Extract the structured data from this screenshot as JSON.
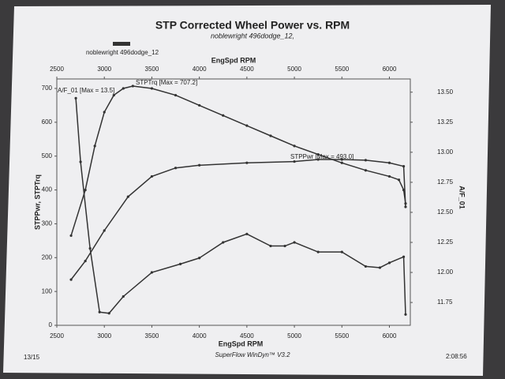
{
  "chart_data": {
    "type": "line",
    "title": "STP Corrected Wheel Power vs. RPM",
    "subtitle": "noblewright 496dodge_12,",
    "legend_label": "noblewright 496dodge_12",
    "x_label": "EngSpd  RPM",
    "y_label": "STPPwr, STPTrq",
    "y2_label": "A/F_01",
    "footer": "SuperFlow WinDyn™ V3.2",
    "date": "13/15",
    "time": "2:08:56",
    "annotations": [
      "A/F_01 [Max = 13.5]",
      "STPTrq [Max = 707.2]",
      "STPPwr [Max = 493.0]"
    ],
    "xlim": [
      2500,
      6220
    ],
    "xticks": [
      2500,
      3000,
      3500,
      4000,
      4500,
      5000,
      5500,
      6000
    ],
    "ylim": [
      0,
      728
    ],
    "yticks": [
      0,
      100,
      200,
      300,
      400,
      500,
      600,
      700
    ],
    "y2lim": [
      11.56,
      13.61
    ],
    "y2ticks": [
      11.75,
      {
        "value": 12,
        "label": "12.00"
      },
      12.25,
      {
        "value": 12.5,
        "label": "12.50"
      },
      12.75,
      {
        "value": 13,
        "label": "13.00"
      },
      13.25,
      {
        "value": 13.5,
        "label": "13.50"
      }
    ],
    "series": [
      {
        "name": "STPTrq",
        "color": "#333333",
        "x": [
          2650,
          2800,
          2900,
          3000,
          3100,
          3200,
          3300,
          3500,
          3750,
          4000,
          4250,
          4500,
          4750,
          5000,
          5250,
          5500,
          5750,
          6000,
          6100,
          6150,
          6170
        ],
        "values": [
          265,
          400,
          530,
          630,
          680,
          700,
          707,
          700,
          680,
          650,
          620,
          590,
          560,
          530,
          505,
          480,
          458,
          440,
          430,
          400,
          360
        ]
      },
      {
        "name": "STPPwr",
        "color": "#333333",
        "x": [
          2650,
          2800,
          3000,
          3250,
          3500,
          3750,
          4000,
          4500,
          5000,
          5250,
          5500,
          5750,
          6000,
          6150,
          6170
        ],
        "values": [
          135,
          190,
          280,
          380,
          440,
          465,
          473,
          480,
          484,
          490,
          490,
          488,
          480,
          470,
          350
        ]
      },
      {
        "name": "A/F_01",
        "color": "#333333",
        "axis": "y2",
        "x": [
          2700,
          2750,
          2850,
          2950,
          3050,
          3200,
          3500,
          3800,
          4000,
          4250,
          4500,
          4750,
          4900,
          5000,
          5250,
          5500,
          5750,
          5900,
          6000,
          6150,
          6170
        ],
        "values": [
          13.45,
          12.92,
          12.2,
          11.67,
          11.66,
          11.8,
          12.0,
          12.07,
          12.12,
          12.25,
          12.32,
          12.22,
          12.22,
          12.25,
          12.17,
          12.17,
          12.05,
          12.04,
          12.08,
          12.13,
          11.65
        ]
      }
    ]
  }
}
